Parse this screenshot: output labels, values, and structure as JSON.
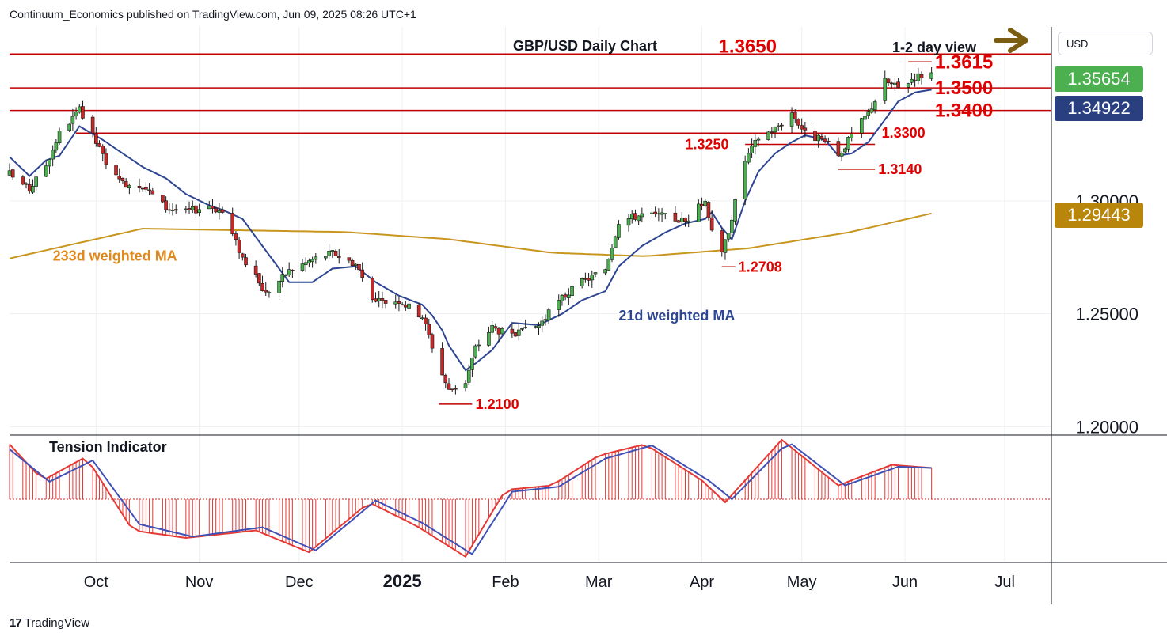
{
  "header": {
    "publisher_line": "Continuum_Economics published on TradingView.com, Jun 09, 2025 08:26 UTC+1"
  },
  "footer": {
    "logo_text": "TradingView",
    "logo_mark": "17"
  },
  "scale": {
    "currency": "USD"
  },
  "badges": {
    "last_price": {
      "text": "1.35654",
      "color": "#4caf50"
    },
    "ma21": {
      "text": "1.34922",
      "color": "#2a3f7f"
    },
    "ma233": {
      "text": "1.29443",
      "color": "#b8860b"
    }
  },
  "colors": {
    "up": "#4caf50",
    "down": "#c62828",
    "level_line": "#c00000",
    "level_text": "#e00000",
    "ma21": "#2e4591",
    "ma233": "#c8961e",
    "osc_fast": "#e53935",
    "osc_slow": "#3f51b5",
    "forecast_arrow": "#7a5c13"
  },
  "chart_data": {
    "type": "candlestick",
    "title": "GBP/USD Daily Chart",
    "subtitle": "1-2 day view",
    "forecast_arrow_icon": "right-arrow-icon",
    "y_ticks": [
      1.2,
      1.25,
      1.3
    ],
    "ylim": [
      1.197,
      1.377
    ],
    "x_ticks": [
      {
        "label": "Oct",
        "date": "2024-10-01",
        "bold": false
      },
      {
        "label": "Nov",
        "date": "2024-11-01",
        "bold": false
      },
      {
        "label": "Dec",
        "date": "2024-12-01",
        "bold": false
      },
      {
        "label": "2025",
        "date": "2025-01-01",
        "bold": true
      },
      {
        "label": "Feb",
        "date": "2025-02-01",
        "bold": false
      },
      {
        "label": "Mar",
        "date": "2025-03-01",
        "bold": false
      },
      {
        "label": "Apr",
        "date": "2025-04-01",
        "bold": false
      },
      {
        "label": "May",
        "date": "2025-05-01",
        "bold": false
      },
      {
        "label": "Jun",
        "date": "2025-06-01",
        "bold": false
      },
      {
        "label": "Jul",
        "date": "2025-07-01",
        "bold": false
      }
    ],
    "xlim": [
      "2024-09-05",
      "2025-07-15"
    ],
    "last_date": "2025-06-09",
    "levels": [
      {
        "label": "1.3650",
        "value": 1.365,
        "line_from": "2024-09-05",
        "line_to": "2025-07-15",
        "label_at": "2025-04-06"
      },
      {
        "label": "1.3615",
        "value": 1.3615,
        "line_from": "2025-06-02",
        "line_to": "2025-06-09",
        "label_at": "2025-06-10"
      },
      {
        "label": "1.3500",
        "value": 1.35,
        "line_from": "2024-09-05",
        "line_to": "2025-07-15",
        "label_at": "2025-06-10"
      },
      {
        "label": "1.3400",
        "value": 1.34,
        "line_from": "2024-09-05",
        "line_to": "2025-07-15",
        "label_at": "2025-06-10"
      },
      {
        "label": "1.3300",
        "value": 1.33,
        "line_from": "2024-09-25",
        "line_to": "2025-05-23",
        "label_at": "2025-05-25"
      },
      {
        "label": "1.3250",
        "value": 1.325,
        "line_from": "2025-04-14",
        "line_to": "2025-05-23",
        "label_at": "2025-03-27"
      },
      {
        "label": "1.3140",
        "value": 1.314,
        "line_from": "2025-05-12",
        "line_to": "2025-05-23",
        "label_at": "2025-05-24"
      },
      {
        "label": "1.2708",
        "value": 1.2708,
        "line_from": "2025-04-07",
        "line_to": "2025-04-11",
        "label_at": "2025-04-12"
      },
      {
        "label": "1.2100",
        "value": 1.21,
        "line_from": "2025-01-12",
        "line_to": "2025-01-22",
        "label_at": "2025-01-23"
      }
    ],
    "annotations": [
      {
        "text": "233d weighted MA",
        "date": "2024-09-18",
        "value": 1.2735,
        "color": "#e08a1e"
      },
      {
        "text": "21d weighted MA",
        "date": "2025-03-07",
        "value": 1.247,
        "color": "#2e4591"
      }
    ],
    "anchors": [
      [
        "2024-09-05",
        1.312,
        1.3195
      ],
      [
        "2024-09-11",
        1.305,
        1.311
      ],
      [
        "2024-09-16",
        1.316,
        1.318
      ],
      [
        "2024-09-20",
        1.33,
        1.32
      ],
      [
        "2024-09-26",
        1.34,
        1.333
      ],
      [
        "2024-10-03",
        1.32,
        1.327
      ],
      [
        "2024-10-08",
        1.308,
        1.322
      ],
      [
        "2024-10-15",
        1.307,
        1.315
      ],
      [
        "2024-10-22",
        1.297,
        1.31
      ],
      [
        "2024-10-28",
        1.295,
        1.303
      ],
      [
        "2024-11-04",
        1.298,
        1.298
      ],
      [
        "2024-11-08",
        1.295,
        1.296
      ],
      [
        "2024-11-14",
        1.275,
        1.292
      ],
      [
        "2024-11-21",
        1.259,
        1.278
      ],
      [
        "2024-11-28",
        1.269,
        1.264
      ],
      [
        "2024-12-05",
        1.274,
        1.264
      ],
      [
        "2024-12-11",
        1.277,
        1.27
      ],
      [
        "2024-12-18",
        1.272,
        1.271
      ],
      [
        "2024-12-24",
        1.255,
        1.264
      ],
      [
        "2024-12-31",
        1.256,
        1.258
      ],
      [
        "2025-01-07",
        1.249,
        1.254
      ],
      [
        "2025-01-12",
        1.227,
        1.246
      ],
      [
        "2025-01-15",
        1.216,
        1.236
      ],
      [
        "2025-01-20",
        1.22,
        1.225
      ],
      [
        "2025-01-23",
        1.235,
        1.228
      ],
      [
        "2025-01-28",
        1.244,
        1.234
      ],
      [
        "2025-02-03",
        1.24,
        1.246
      ],
      [
        "2025-02-11",
        1.245,
        1.245
      ],
      [
        "2025-02-18",
        1.257,
        1.25
      ],
      [
        "2025-02-24",
        1.264,
        1.256
      ],
      [
        "2025-03-03",
        1.27,
        1.26
      ],
      [
        "2025-03-07",
        1.291,
        1.271
      ],
      [
        "2025-03-14",
        1.294,
        1.28
      ],
      [
        "2025-03-21",
        1.293,
        1.286
      ],
      [
        "2025-03-27",
        1.291,
        1.29
      ],
      [
        "2025-04-02",
        1.3,
        1.292
      ],
      [
        "2025-04-04",
        1.288,
        1.295
      ],
      [
        "2025-04-07",
        1.276,
        1.288
      ],
      [
        "2025-04-10",
        1.293,
        1.283
      ],
      [
        "2025-04-14",
        1.318,
        1.3
      ],
      [
        "2025-04-18",
        1.328,
        1.313
      ],
      [
        "2025-04-23",
        1.332,
        1.321
      ],
      [
        "2025-04-28",
        1.339,
        1.326
      ],
      [
        "2025-05-02",
        1.33,
        1.329
      ],
      [
        "2025-05-08",
        1.326,
        1.327
      ],
      [
        "2025-05-12",
        1.32,
        1.32
      ],
      [
        "2025-05-16",
        1.329,
        1.321
      ],
      [
        "2025-05-21",
        1.339,
        1.326
      ],
      [
        "2025-05-26",
        1.353,
        1.336
      ],
      [
        "2025-05-30",
        1.35,
        1.344
      ],
      [
        "2025-06-04",
        1.355,
        1.348
      ],
      [
        "2025-06-09",
        1.3565,
        1.3492
      ]
    ],
    "indicator": {
      "name": "Tension Indicator",
      "ylim": [
        -1.0,
        1.0
      ],
      "fast_anchors": [
        [
          "2024-09-05",
          0.88
        ],
        [
          "2024-09-15",
          0.3
        ],
        [
          "2024-09-28",
          0.68
        ],
        [
          "2024-10-12",
          -0.5
        ],
        [
          "2024-10-28",
          -0.62
        ],
        [
          "2024-11-18",
          -0.5
        ],
        [
          "2024-12-04",
          -0.85
        ],
        [
          "2024-12-22",
          -0.05
        ],
        [
          "2025-01-05",
          -0.42
        ],
        [
          "2025-01-20",
          -0.92
        ],
        [
          "2025-02-01",
          0.15
        ],
        [
          "2025-02-15",
          0.22
        ],
        [
          "2025-03-01",
          0.7
        ],
        [
          "2025-03-15",
          0.88
        ],
        [
          "2025-04-01",
          0.3
        ],
        [
          "2025-04-08",
          -0.05
        ],
        [
          "2025-04-25",
          0.95
        ],
        [
          "2025-05-12",
          0.22
        ],
        [
          "2025-05-28",
          0.55
        ],
        [
          "2025-06-09",
          0.5
        ]
      ],
      "slow_anchors": [
        [
          "2024-09-05",
          0.8
        ],
        [
          "2024-09-17",
          0.28
        ],
        [
          "2024-09-30",
          0.62
        ],
        [
          "2024-10-14",
          -0.4
        ],
        [
          "2024-10-30",
          -0.6
        ],
        [
          "2024-11-20",
          -0.45
        ],
        [
          "2024-12-06",
          -0.82
        ],
        [
          "2024-12-24",
          -0.02
        ],
        [
          "2025-01-07",
          -0.38
        ],
        [
          "2025-01-22",
          -0.88
        ],
        [
          "2025-02-03",
          0.12
        ],
        [
          "2025-02-17",
          0.2
        ],
        [
          "2025-03-03",
          0.65
        ],
        [
          "2025-03-17",
          0.86
        ],
        [
          "2025-04-03",
          0.3
        ],
        [
          "2025-04-10",
          0.0
        ],
        [
          "2025-04-27",
          0.92
        ],
        [
          "2025-05-14",
          0.22
        ],
        [
          "2025-05-30",
          0.52
        ],
        [
          "2025-06-09",
          0.5
        ]
      ]
    }
  }
}
